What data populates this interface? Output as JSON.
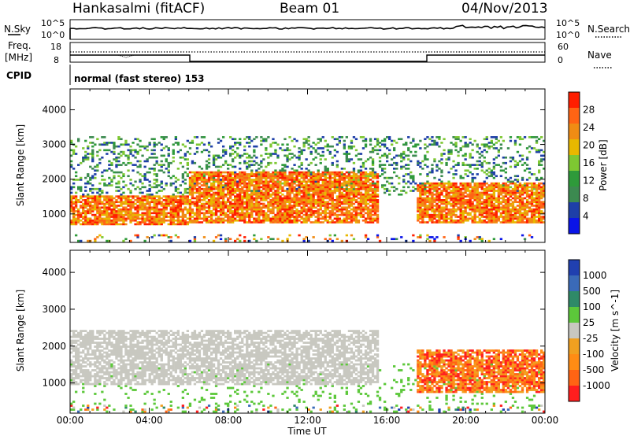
{
  "header": {
    "station": "Hankasalmi (fitACF)",
    "beam": "Beam 01",
    "date": "04/Nov/2013"
  },
  "strips": {
    "nsky_label": "N.Sky",
    "nsky_ticks": [
      "10^5",
      "10^0"
    ],
    "nsearch_label": "N.Search",
    "nsearch_ticks": [
      "10^5",
      "10^0"
    ],
    "freq_label_1": "Freq.",
    "freq_label_2": "[MHz]",
    "freq_ticks": [
      "18",
      "8"
    ],
    "nave_label": "Nave",
    "nave_ticks": [
      "60",
      "0"
    ],
    "cpid_label": "CPID",
    "cpid_text": "normal (fast stereo) 153"
  },
  "colors": {
    "power_scale": [
      "#0a14e8",
      "#1e3fa8",
      "#3c8a50",
      "#2e9a3a",
      "#7ec832",
      "#e8b800",
      "#f08c14",
      "#ff6414",
      "#ff1e00"
    ],
    "velocity_scale": [
      "#2040b0",
      "#3a6ab8",
      "#2f8a68",
      "#5cc83a",
      "#c8c8c0",
      "#f0a020",
      "#ff8c14",
      "#ff6414",
      "#ff1e1e"
    ]
  },
  "chart_data": [
    {
      "type": "heatmap",
      "name": "power",
      "xlabel": "Time UT",
      "ylabel": "Slant Range [km]",
      "x_ticks": [
        "00:00",
        "04:00",
        "08:00",
        "12:00",
        "16:00",
        "20:00",
        "00:00"
      ],
      "xlim_hours": [
        0,
        24
      ],
      "y_ticks": [
        1000,
        2000,
        3000,
        4000
      ],
      "ylim": [
        180,
        4600
      ],
      "colorbar": {
        "label": "Power [dB]",
        "ticks": [
          4,
          8,
          12,
          16,
          20,
          24,
          28
        ],
        "range": [
          0,
          32
        ]
      },
      "bands": [
        {
          "t0": 0.0,
          "t1": 6.0,
          "r0": 650,
          "r1": 1500,
          "level": "strong"
        },
        {
          "t0": 6.0,
          "t1": 15.5,
          "r0": 700,
          "r1": 2200,
          "level": "strong"
        },
        {
          "t0": 17.5,
          "t1": 24.0,
          "r0": 700,
          "r1": 1900,
          "level": "strong"
        },
        {
          "t0": 0.0,
          "t1": 24.0,
          "r0": 1500,
          "r1": 3200,
          "level": "scattered"
        }
      ]
    },
    {
      "type": "heatmap",
      "name": "velocity",
      "xlabel": "Time UT",
      "ylabel": "Slant Range [km]",
      "x_ticks": [
        "00:00",
        "04:00",
        "08:00",
        "12:00",
        "16:00",
        "20:00",
        "00:00"
      ],
      "xlim_hours": [
        0,
        24
      ],
      "y_ticks": [
        1000,
        2000,
        3000,
        4000
      ],
      "ylim": [
        180,
        4600
      ],
      "colorbar": {
        "label": "Velocity [m s^-1]",
        "ticks": [
          1000,
          500,
          100,
          25,
          -25,
          -100,
          -500,
          -1000
        ]
      },
      "bands": [
        {
          "t0": 0.0,
          "t1": 15.5,
          "r0": 900,
          "r1": 2400,
          "level": "ground-scatter"
        },
        {
          "t0": 17.5,
          "t1": 24.0,
          "r0": 700,
          "r1": 1900,
          "level": "negative"
        }
      ]
    }
  ]
}
